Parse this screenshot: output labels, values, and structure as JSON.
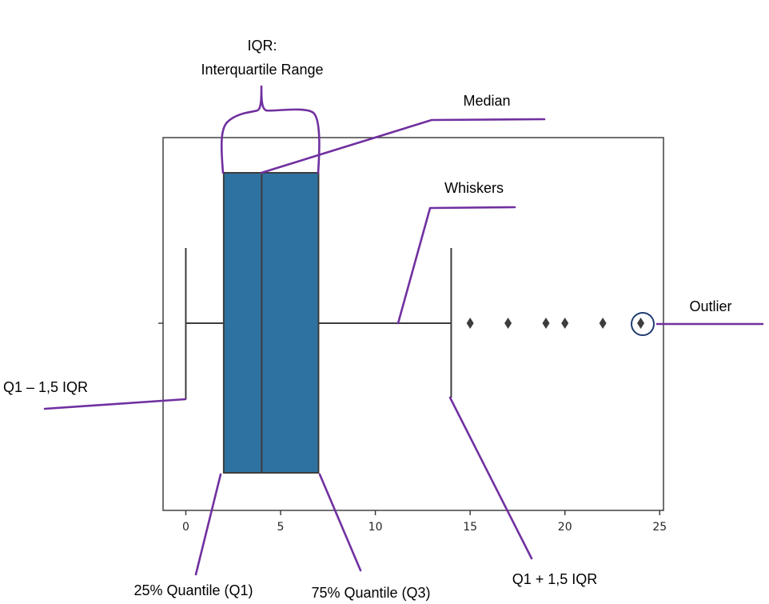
{
  "chart_data": {
    "type": "box",
    "x_ticks": [
      "0",
      "5",
      "10",
      "15",
      "20",
      "25"
    ],
    "xlim": [
      -1.2,
      25.2
    ],
    "box": {
      "whisker_low": 0,
      "q1": 2,
      "median": 4,
      "q3": 7,
      "whisker_high": 14
    },
    "outliers": [
      15,
      17,
      19,
      20,
      22,
      24
    ],
    "box_color": "#2e72a2",
    "annotation_color": "#7030a0",
    "highlight_color": "#1f3d72"
  },
  "annotations": {
    "iqr_line1": "IQR:",
    "iqr_line2": "Interquartile Range",
    "median": "Median",
    "whiskers": "Whiskers",
    "outlier": "Outlier",
    "lower_fence": "Q1 – 1,5 IQR",
    "upper_fence": "Q1 + 1,5 IQR",
    "q1": "25% Quantile (Q1)",
    "q3": "75% Quantile (Q3)"
  }
}
